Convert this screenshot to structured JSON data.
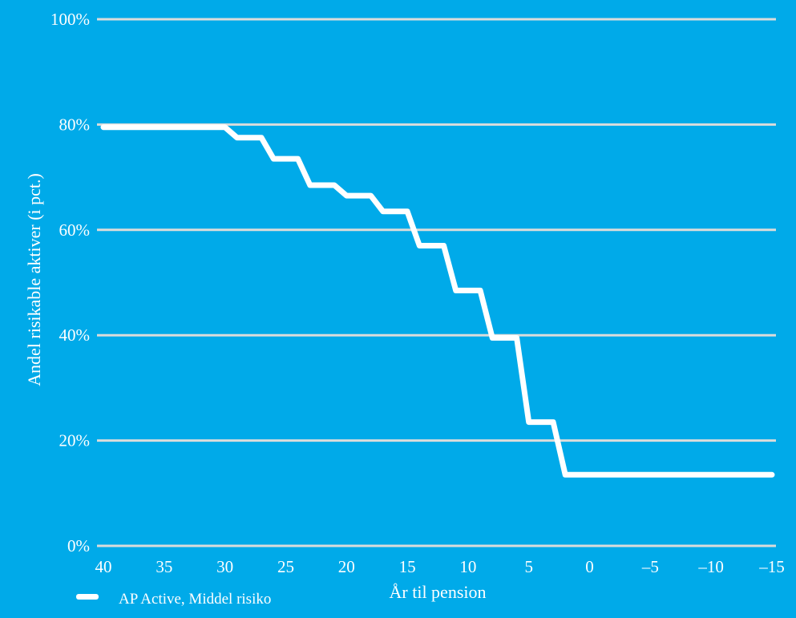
{
  "chart_data": {
    "type": "line",
    "title": "",
    "xlabel": "År til pension",
    "ylabel": "Andel risikable aktiver (i pct.)",
    "x_ticks": [
      40,
      35,
      30,
      25,
      20,
      15,
      10,
      5,
      0,
      -5,
      -10,
      -15
    ],
    "x_tick_labels": [
      "40",
      "35",
      "30",
      "25",
      "20",
      "15",
      "10",
      "5",
      "0",
      "–5",
      "–10",
      "–15"
    ],
    "y_ticks": [
      0,
      20,
      40,
      60,
      80,
      100
    ],
    "y_tick_labels": [
      "0%",
      "20%",
      "40%",
      "60%",
      "80%",
      "100%"
    ],
    "xlim": [
      40,
      -15
    ],
    "ylim": [
      0,
      100
    ],
    "x_axis_reversed": true,
    "grid": "horizontal",
    "legend_position": "bottom-left",
    "series": [
      {
        "name": "AP Active, Middel risiko",
        "color": "#FFFFFF",
        "points": [
          [
            40,
            79.5
          ],
          [
            30,
            79.5
          ],
          [
            29,
            77.5
          ],
          [
            27,
            77.5
          ],
          [
            26,
            73.5
          ],
          [
            24,
            73.5
          ],
          [
            23,
            68.5
          ],
          [
            21,
            68.5
          ],
          [
            20,
            66.5
          ],
          [
            18,
            66.5
          ],
          [
            17,
            63.5
          ],
          [
            15,
            63.5
          ],
          [
            14,
            57.0
          ],
          [
            12,
            57.0
          ],
          [
            11,
            48.5
          ],
          [
            9,
            48.5
          ],
          [
            8,
            39.5
          ],
          [
            6,
            39.5
          ],
          [
            5,
            23.5
          ],
          [
            3,
            23.5
          ],
          [
            2,
            13.5
          ],
          [
            -15,
            13.5
          ]
        ]
      }
    ],
    "colors": {
      "background": "#00AAE9",
      "gridline": "#DADCDB",
      "line": "#FFFFFF",
      "text": "#FFFFFF"
    }
  }
}
